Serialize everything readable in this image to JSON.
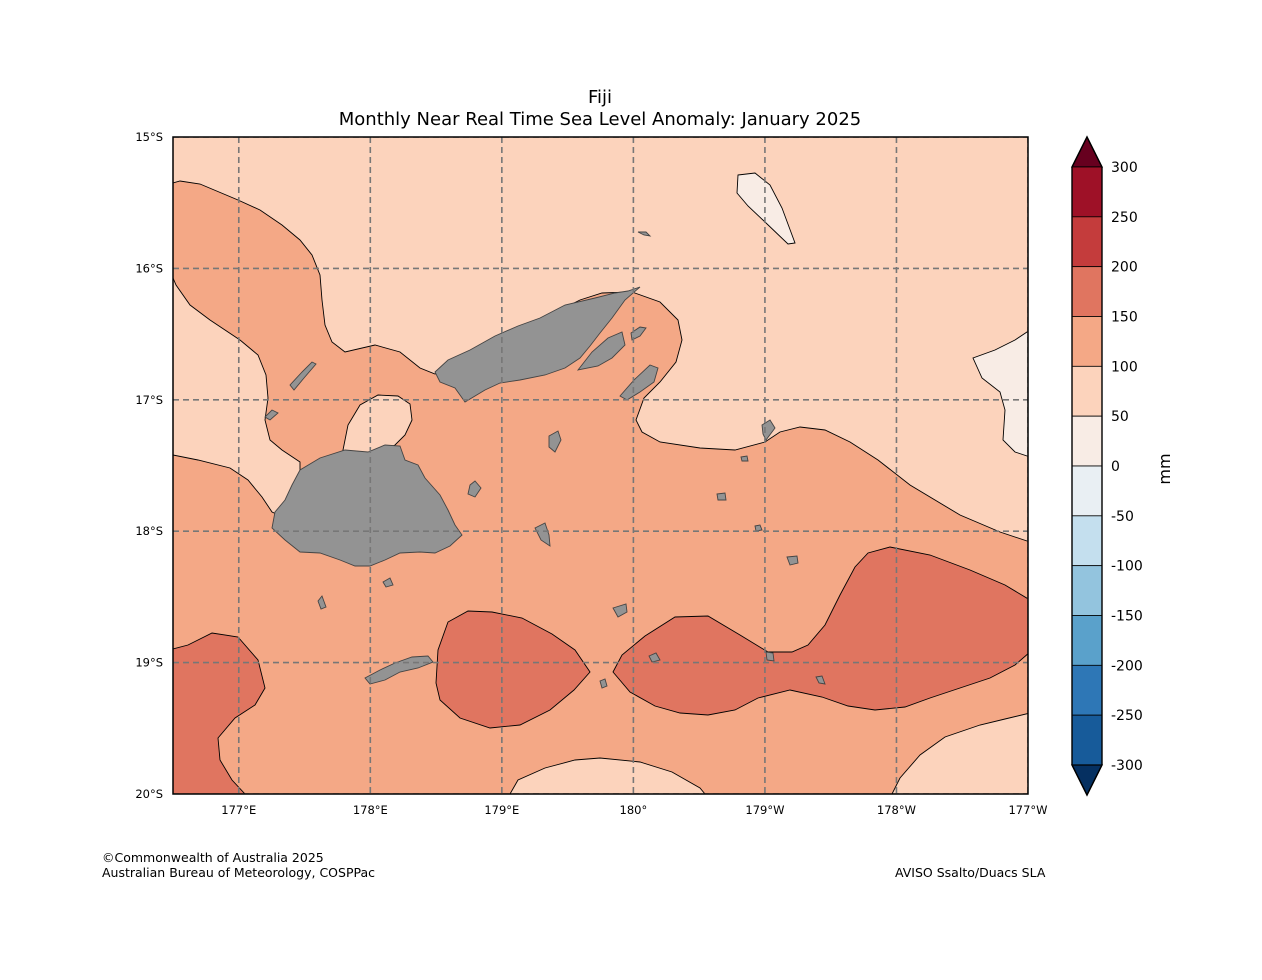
{
  "title": {
    "region": "Fiji",
    "subtitle": "Monthly Near Real Time Sea Level Anomaly: January 2025"
  },
  "map": {
    "lon_range": [
      176.5,
      183.0
    ],
    "lat_range": [
      -20,
      -15
    ],
    "lon_ticks": [
      {
        "value": 177,
        "label": "177°E"
      },
      {
        "value": 178,
        "label": "178°E"
      },
      {
        "value": 179,
        "label": "179°E"
      },
      {
        "value": 180,
        "label": "180°"
      },
      {
        "value": 181,
        "label": "179°W"
      },
      {
        "value": 182,
        "label": "178°W"
      },
      {
        "value": 183,
        "label": "177°W"
      }
    ],
    "lat_ticks": [
      {
        "value": -15,
        "label": "15°S"
      },
      {
        "value": -16,
        "label": "16°S"
      },
      {
        "value": -17,
        "label": "17°S"
      },
      {
        "value": -18,
        "label": "18°S"
      },
      {
        "value": -19,
        "label": "19°S"
      },
      {
        "value": -20,
        "label": "20°S"
      }
    ],
    "gridlines": "dashed",
    "land_color": "#939393"
  },
  "colorbar": {
    "label": "mm",
    "ticks": [
      "300",
      "250",
      "200",
      "150",
      "100",
      "50",
      "0",
      "-50",
      "-100",
      "-150",
      "-200",
      "-250",
      "-300"
    ],
    "colors_top_to_bottom": [
      "#9e1127",
      "#c43c3c",
      "#e07560",
      "#f4a886",
      "#fcd3bc",
      "#f8ece5",
      "#e9eff3",
      "#c4dfee",
      "#93c4de",
      "#5aa1cb",
      "#2e77b6",
      "#175b9a"
    ],
    "extend_max_color": "#67001f",
    "extend_min_color": "#053061"
  },
  "footer": {
    "copyright": "©Commonwealth of Australia 2025",
    "org": "Australian Bureau of Meteorology, COSPPac",
    "source": "AVISO Ssalto/Duacs SLA"
  }
}
